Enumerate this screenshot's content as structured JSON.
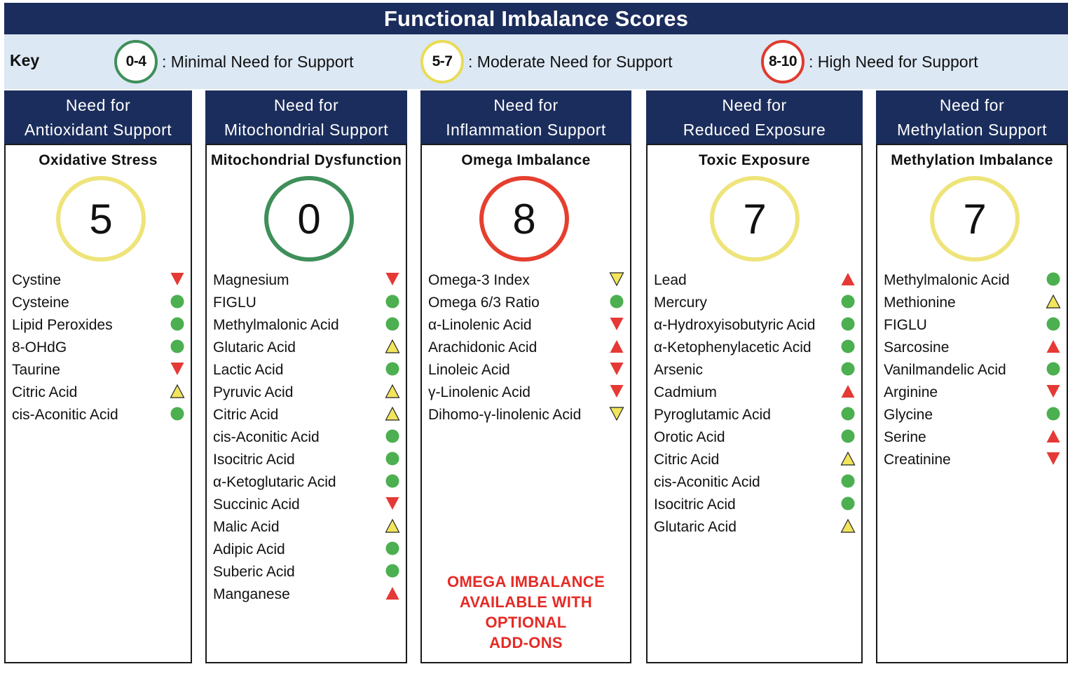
{
  "title": "Functional Imbalance Scores",
  "key": {
    "label": "Key",
    "items": [
      {
        "range": "0-4",
        "text": ": Minimal Need for Support",
        "color": "#3f8f5a"
      },
      {
        "range": "5-7",
        "text": ": Moderate Need for Support",
        "color": "#e9dc55"
      },
      {
        "range": "8-10",
        "text": ": High Need for Support",
        "color": "#e03a2e"
      }
    ]
  },
  "columns": [
    {
      "header_line1": "Need for",
      "header_line2": "Antioxidant Support",
      "subtitle": "Oxidative Stress",
      "score": "5",
      "level": "moderate",
      "items": [
        {
          "name": "Cystine",
          "indicator": "red-down"
        },
        {
          "name": "Cysteine",
          "indicator": "green-dot"
        },
        {
          "name": "Lipid Peroxides",
          "indicator": "green-dot"
        },
        {
          "name": "8-OHdG",
          "indicator": "green-dot"
        },
        {
          "name": "Taurine",
          "indicator": "red-down"
        },
        {
          "name": "Citric Acid",
          "indicator": "yellow-up"
        },
        {
          "name": "cis-Aconitic Acid",
          "indicator": "green-dot"
        }
      ]
    },
    {
      "header_line1": "Need for",
      "header_line2": "Mitochondrial Support",
      "subtitle": "Mitochondrial Dysfunction",
      "score": "0",
      "level": "minimal",
      "items": [
        {
          "name": "Magnesium",
          "indicator": "red-down"
        },
        {
          "name": "FIGLU",
          "indicator": "green-dot"
        },
        {
          "name": "Methylmalonic Acid",
          "indicator": "green-dot"
        },
        {
          "name": "Glutaric Acid",
          "indicator": "yellow-up"
        },
        {
          "name": "Lactic Acid",
          "indicator": "green-dot"
        },
        {
          "name": "Pyruvic Acid",
          "indicator": "yellow-up"
        },
        {
          "name": "Citric Acid",
          "indicator": "yellow-up"
        },
        {
          "name": "cis-Aconitic Acid",
          "indicator": "green-dot"
        },
        {
          "name": "Isocitric Acid",
          "indicator": "green-dot"
        },
        {
          "name": "α-Ketoglutaric Acid",
          "indicator": "green-dot"
        },
        {
          "name": "Succinic Acid",
          "indicator": "red-down"
        },
        {
          "name": "Malic Acid",
          "indicator": "yellow-up"
        },
        {
          "name": "Adipic Acid",
          "indicator": "green-dot"
        },
        {
          "name": "Suberic Acid",
          "indicator": "green-dot"
        },
        {
          "name": "Manganese",
          "indicator": "red-up"
        }
      ]
    },
    {
      "header_line1": "Need for",
      "header_line2": "Inflammation Support",
      "subtitle": "Omega Imbalance",
      "score": "8",
      "level": "high",
      "items": [
        {
          "name": "Omega-3 Index",
          "indicator": "yellow-down"
        },
        {
          "name": "Omega 6/3 Ratio",
          "indicator": "green-dot"
        },
        {
          "name": "α-Linolenic Acid",
          "indicator": "red-down"
        },
        {
          "name": "Arachidonic Acid",
          "indicator": "red-up"
        },
        {
          "name": "Linoleic Acid",
          "indicator": "red-down"
        },
        {
          "name": "γ-Linolenic Acid",
          "indicator": "red-down"
        },
        {
          "name": "Dihomo-γ-linolenic Acid",
          "indicator": "yellow-down"
        }
      ],
      "note_lines": [
        "OMEGA IMBALANCE",
        "AVAILABLE WITH",
        "OPTIONAL",
        "ADD-ONS"
      ]
    },
    {
      "header_line1": "Need for",
      "header_line2": "Reduced Exposure",
      "subtitle": "Toxic Exposure",
      "score": "7",
      "level": "moderate",
      "items": [
        {
          "name": "Lead",
          "indicator": "red-up"
        },
        {
          "name": "Mercury",
          "indicator": "green-dot"
        },
        {
          "name": "α-Hydroxyisobutyric Acid",
          "indicator": "green-dot"
        },
        {
          "name": "α-Ketophenylacetic Acid",
          "indicator": "green-dot"
        },
        {
          "name": "Arsenic",
          "indicator": "green-dot"
        },
        {
          "name": "Cadmium",
          "indicator": "red-up"
        },
        {
          "name": "Pyroglutamic Acid",
          "indicator": "green-dot"
        },
        {
          "name": "Orotic Acid",
          "indicator": "green-dot"
        },
        {
          "name": "Citric Acid",
          "indicator": "yellow-up"
        },
        {
          "name": "cis-Aconitic Acid",
          "indicator": "green-dot"
        },
        {
          "name": "Isocitric Acid",
          "indicator": "green-dot"
        },
        {
          "name": "Glutaric Acid",
          "indicator": "yellow-up"
        }
      ]
    },
    {
      "header_line1": "Need for",
      "header_line2": "Methylation Support",
      "subtitle": "Methylation Imbalance",
      "score": "7",
      "level": "moderate",
      "items": [
        {
          "name": "Methylmalonic Acid",
          "indicator": "green-dot"
        },
        {
          "name": "Methionine",
          "indicator": "yellow-up"
        },
        {
          "name": "FIGLU",
          "indicator": "green-dot"
        },
        {
          "name": "Sarcosine",
          "indicator": "red-up"
        },
        {
          "name": "Vanilmandelic Acid",
          "indicator": "green-dot"
        },
        {
          "name": "Arginine",
          "indicator": "red-down"
        },
        {
          "name": "Glycine",
          "indicator": "green-dot"
        },
        {
          "name": "Serine",
          "indicator": "red-up"
        },
        {
          "name": "Creatinine",
          "indicator": "red-down"
        }
      ]
    }
  ],
  "colors": {
    "header": "#1b2d5c",
    "key_background": "#dce8f4",
    "green": "#4caf50",
    "yellow": "#f2e55c",
    "red": "#e53935"
  }
}
